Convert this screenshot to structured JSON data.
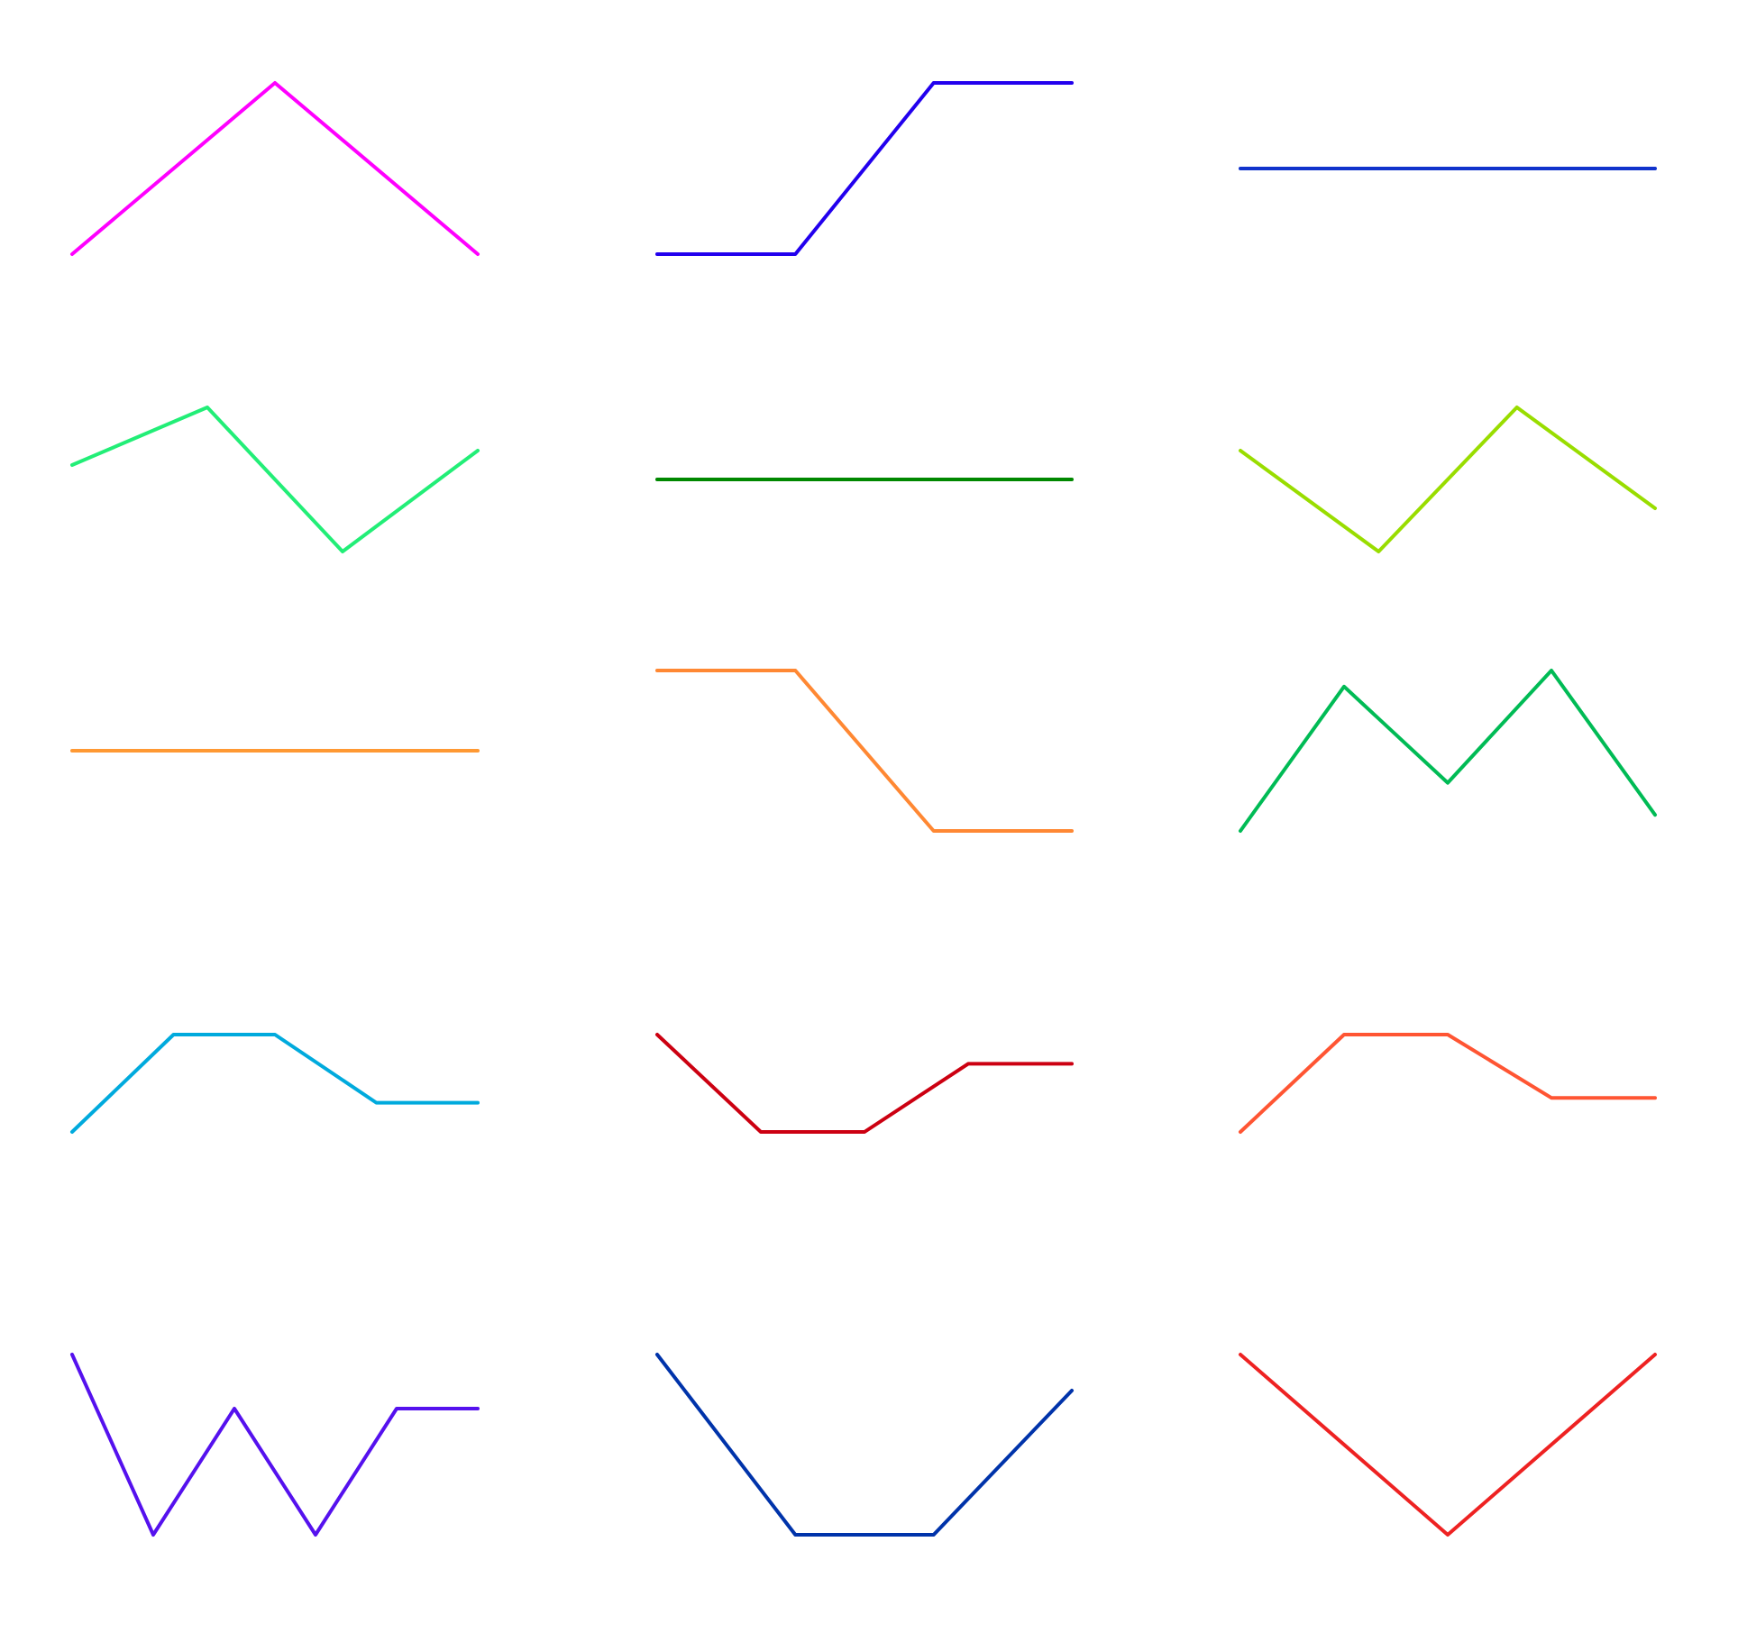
{
  "chart_data": {
    "type": "line",
    "layout": "grid",
    "rows": 5,
    "cols": 3,
    "grid": false,
    "axes": false,
    "panels": [
      {
        "color": "#ff00ff",
        "points": [
          [
            0.0,
            0.0
          ],
          [
            1.0,
            1.0
          ],
          [
            2.0,
            0.0
          ]
        ]
      },
      {
        "color": "#2200ee",
        "points": [
          [
            0.0,
            0.0
          ],
          [
            1.0,
            0.0
          ],
          [
            2.0,
            1.0
          ],
          [
            3.0,
            1.0
          ]
        ]
      },
      {
        "color": "#1133cc",
        "points": [
          [
            0.0,
            0.0
          ],
          [
            1.0,
            0.0
          ]
        ]
      },
      {
        "color": "#22ee77",
        "points": [
          [
            0.0,
            0.6
          ],
          [
            1.0,
            1.0
          ],
          [
            2.0,
            0.0
          ],
          [
            3.0,
            0.7
          ]
        ]
      },
      {
        "color": "#008800",
        "points": [
          [
            0.0,
            0.0
          ],
          [
            1.0,
            0.0
          ]
        ]
      },
      {
        "color": "#99dd00",
        "points": [
          [
            0.0,
            0.7
          ],
          [
            1.0,
            0.0
          ],
          [
            2.0,
            1.0
          ],
          [
            3.0,
            0.3
          ]
        ]
      },
      {
        "color": "#ff9933",
        "points": [
          [
            0.0,
            0.0
          ],
          [
            1.0,
            0.0
          ]
        ]
      },
      {
        "color": "#ff8833",
        "points": [
          [
            0.0,
            1.0
          ],
          [
            1.0,
            1.0
          ],
          [
            2.0,
            0.0
          ],
          [
            3.0,
            0.0
          ]
        ]
      },
      {
        "color": "#00bb55",
        "points": [
          [
            0.0,
            0.0
          ],
          [
            1.0,
            0.9
          ],
          [
            2.0,
            0.3
          ],
          [
            3.0,
            1.0
          ],
          [
            4.0,
            0.1
          ]
        ]
      },
      {
        "color": "#00aadd",
        "points": [
          [
            0.0,
            0.0
          ],
          [
            1.0,
            1.0
          ],
          [
            2.0,
            1.0
          ],
          [
            3.0,
            0.3
          ],
          [
            4.0,
            0.3
          ]
        ]
      },
      {
        "color": "#cc0011",
        "points": [
          [
            0.0,
            1.0
          ],
          [
            1.0,
            0.0
          ],
          [
            2.0,
            0.0
          ],
          [
            3.0,
            0.7
          ],
          [
            4.0,
            0.7
          ]
        ]
      },
      {
        "color": "#ff5533",
        "points": [
          [
            0.0,
            0.0
          ],
          [
            1.0,
            1.0
          ],
          [
            2.0,
            1.0
          ],
          [
            3.0,
            0.35
          ],
          [
            4.0,
            0.35
          ]
        ]
      },
      {
        "color": "#5511ee",
        "points": [
          [
            0.0,
            1.0
          ],
          [
            1.0,
            0.0
          ],
          [
            2.0,
            0.7
          ],
          [
            3.0,
            0.0
          ],
          [
            4.0,
            0.7
          ],
          [
            5.0,
            0.7
          ]
        ]
      },
      {
        "color": "#0033aa",
        "points": [
          [
            0.0,
            1.0
          ],
          [
            1.0,
            0.0
          ],
          [
            2.0,
            0.0
          ],
          [
            3.0,
            0.8
          ]
        ]
      },
      {
        "color": "#ee2222",
        "points": [
          [
            0.0,
            1.0
          ],
          [
            1.0,
            0.0
          ],
          [
            2.0,
            1.0
          ]
        ]
      }
    ]
  }
}
